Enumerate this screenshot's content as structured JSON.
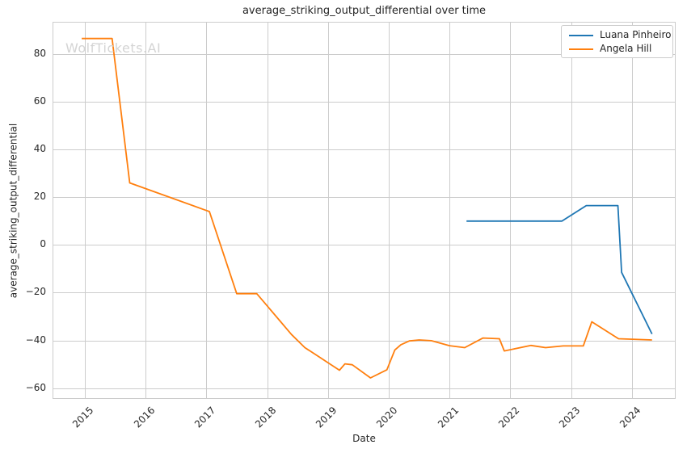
{
  "chart_data": {
    "type": "line",
    "title": "average_striking_output_differential over time",
    "xlabel": "Date",
    "ylabel": "average_striking_output_differential",
    "watermark": "WolfTickets.AI",
    "grid": true,
    "legend_position": "upper right",
    "xlim": [
      2014.47,
      2024.72
    ],
    "ylim": [
      -64.5,
      93.5
    ],
    "x_ticks": [
      {
        "value": 2015,
        "label": "2015"
      },
      {
        "value": 2016,
        "label": "2016"
      },
      {
        "value": 2017,
        "label": "2017"
      },
      {
        "value": 2018,
        "label": "2018"
      },
      {
        "value": 2019,
        "label": "2019"
      },
      {
        "value": 2020,
        "label": "2020"
      },
      {
        "value": 2021,
        "label": "2021"
      },
      {
        "value": 2022,
        "label": "2022"
      },
      {
        "value": 2023,
        "label": "2023"
      },
      {
        "value": 2024,
        "label": "2024"
      }
    ],
    "y_ticks": [
      {
        "value": 80,
        "label": "80"
      },
      {
        "value": 60,
        "label": "60"
      },
      {
        "value": 40,
        "label": "40"
      },
      {
        "value": 20,
        "label": "20"
      },
      {
        "value": 0,
        "label": "0"
      },
      {
        "value": -20,
        "label": "−20"
      },
      {
        "value": -40,
        "label": "−40"
      },
      {
        "value": -60,
        "label": "−60"
      }
    ],
    "colors": {
      "grid": "#cccccc",
      "axes_border": "#cccccc",
      "text": "#262626",
      "watermark": "#d4d4d4",
      "background": "#ffffff"
    },
    "series": [
      {
        "name": "Luana Pinheiro",
        "color": "#1f77b4",
        "points": [
          [
            2021.28,
            10
          ],
          [
            2022.85,
            10
          ],
          [
            2023.25,
            16.5
          ],
          [
            2023.77,
            16.5
          ],
          [
            2023.83,
            -11.5
          ],
          [
            2024.33,
            -37.3
          ]
        ]
      },
      {
        "name": "Angela Hill",
        "color": "#ff7f0e",
        "points": [
          [
            2014.95,
            86.5
          ],
          [
            2015.45,
            86.5
          ],
          [
            2015.74,
            26
          ],
          [
            2017.05,
            14
          ],
          [
            2017.5,
            -20.4
          ],
          [
            2017.83,
            -20.4
          ],
          [
            2018.0,
            -25.5
          ],
          [
            2018.2,
            -31.5
          ],
          [
            2018.4,
            -37.5
          ],
          [
            2018.62,
            -43
          ],
          [
            2018.8,
            -46
          ],
          [
            2019.0,
            -49.3
          ],
          [
            2019.19,
            -52.5
          ],
          [
            2019.28,
            -49.8
          ],
          [
            2019.4,
            -50.2
          ],
          [
            2019.7,
            -55.7
          ],
          [
            2019.97,
            -52.3
          ],
          [
            2020.1,
            -44
          ],
          [
            2020.2,
            -41.8
          ],
          [
            2020.34,
            -40.2
          ],
          [
            2020.5,
            -39.8
          ],
          [
            2020.7,
            -40.1
          ],
          [
            2021.0,
            -42.2
          ],
          [
            2021.25,
            -43
          ],
          [
            2021.55,
            -39
          ],
          [
            2021.82,
            -39.3
          ],
          [
            2021.9,
            -44.4
          ],
          [
            2022.34,
            -42.1
          ],
          [
            2022.58,
            -43
          ],
          [
            2022.87,
            -42.3
          ],
          [
            2023.2,
            -42.3
          ],
          [
            2023.34,
            -32.2
          ],
          [
            2023.78,
            -39.3
          ],
          [
            2024.33,
            -39.8
          ]
        ]
      }
    ]
  }
}
